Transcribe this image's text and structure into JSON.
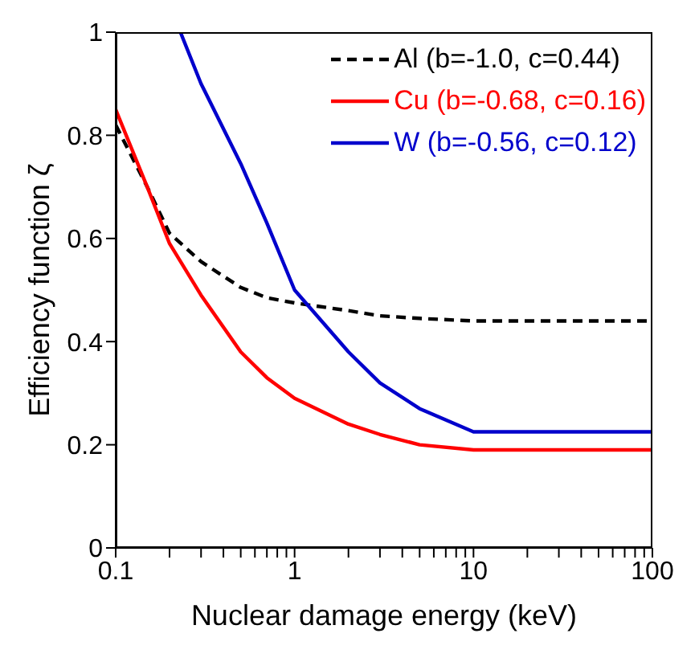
{
  "chart_data": {
    "type": "line",
    "xlabel": "Nuclear damage energy (keV)",
    "ylabel": "Efficiency function ζ",
    "log": "x",
    "xlim": [
      0.1,
      100
    ],
    "ylim": [
      0,
      1
    ],
    "xticks": [
      0.1,
      {
        "value": 0.2,
        "label": null
      },
      {
        "value": 0.3,
        "label": null
      },
      {
        "value": 0.4,
        "label": null
      },
      {
        "value": 0.5,
        "label": null
      },
      {
        "value": 0.6,
        "label": null
      },
      {
        "value": 0.7,
        "label": null
      },
      {
        "value": 0.8,
        "label": null
      },
      {
        "value": 0.9,
        "label": null
      },
      1,
      {
        "value": 2,
        "label": null
      },
      {
        "value": 3,
        "label": null
      },
      {
        "value": 4,
        "label": null
      },
      {
        "value": 5,
        "label": null
      },
      {
        "value": 6,
        "label": null
      },
      {
        "value": 7,
        "label": null
      },
      {
        "value": 8,
        "label": null
      },
      {
        "value": 9,
        "label": null
      },
      10,
      {
        "value": 20,
        "label": null
      },
      {
        "value": 30,
        "label": null
      },
      {
        "value": 40,
        "label": null
      },
      {
        "value": 50,
        "label": null
      },
      {
        "value": 60,
        "label": null
      },
      {
        "value": 70,
        "label": null
      },
      {
        "value": 80,
        "label": null
      },
      {
        "value": 90,
        "label": null
      },
      100
    ],
    "yticks": [
      0,
      0.2,
      0.4,
      0.6,
      0.8,
      1
    ],
    "grid": false,
    "legend": "top right",
    "marker": "none",
    "series": [
      {
        "name": "Al (b=-1.0, c=0.44)",
        "color": "#000000",
        "line_style": "dashed",
        "x": [
          0.1,
          0.15,
          0.2,
          0.3,
          0.5,
          0.7,
          1,
          2,
          3,
          5,
          10,
          100
        ],
        "values": [
          0.82,
          0.7,
          0.61,
          0.555,
          0.505,
          0.485,
          0.475,
          0.46,
          0.45,
          0.445,
          0.44,
          0.44
        ]
      },
      {
        "name": "Cu (b=-0.68, c=0.16)",
        "color": "#ff0000",
        "line_style": "solid",
        "x": [
          0.1,
          0.15,
          0.2,
          0.3,
          0.5,
          0.7,
          1,
          2,
          3,
          5,
          10,
          100
        ],
        "values": [
          0.85,
          0.7,
          0.59,
          0.49,
          0.38,
          0.33,
          0.29,
          0.24,
          0.22,
          0.2,
          0.19,
          0.19
        ]
      },
      {
        "name": "W (b=-0.56, c=0.12)",
        "color": "#0000cc",
        "line_style": "solid",
        "x": [
          0.23,
          0.3,
          0.5,
          0.7,
          1,
          2,
          3,
          5,
          10,
          100
        ],
        "values": [
          1.0,
          0.9,
          0.745,
          0.63,
          0.5,
          0.38,
          0.32,
          0.27,
          0.225,
          0.225
        ]
      }
    ]
  }
}
